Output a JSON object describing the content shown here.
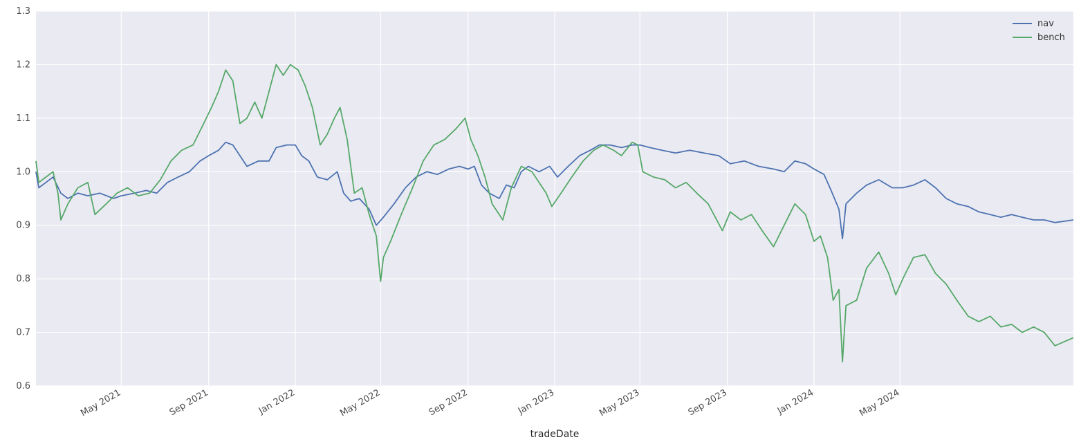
{
  "chart_data": {
    "type": "line",
    "xlabel": "tradeDate",
    "ylabel": "",
    "ylim": [
      0.6,
      1.3
    ],
    "xlim": [
      "2021-01-01",
      "2024-12-31"
    ],
    "yticks": [
      0.6,
      0.7,
      0.8,
      0.9,
      1.0,
      1.1,
      1.2,
      1.3
    ],
    "ytick_labels": [
      "0.6",
      "0.7",
      "0.8",
      "0.9",
      "1.0",
      "1.1",
      "1.2",
      "1.3"
    ],
    "xticks": [
      "2021-05-01",
      "2021-09-01",
      "2022-01-01",
      "2022-05-01",
      "2022-09-01",
      "2023-01-01",
      "2023-05-01",
      "2023-09-01",
      "2024-01-01",
      "2024-05-01"
    ],
    "xtick_labels": [
      "May 2021",
      "Sep 2021",
      "Jan 2022",
      "May 2022",
      "Sep 2022",
      "Jan 2023",
      "May 2023",
      "Sep 2023",
      "Jan 2024",
      "May 2024"
    ],
    "grid": true,
    "legend_position": "top-right",
    "series": [
      {
        "name": "nav",
        "color": "#4c72b0",
        "points": [
          [
            "2021-01-01",
            1.0
          ],
          [
            "2021-01-05",
            0.97
          ],
          [
            "2021-01-15",
            0.98
          ],
          [
            "2021-01-25",
            0.99
          ],
          [
            "2021-02-05",
            0.96
          ],
          [
            "2021-02-15",
            0.95
          ],
          [
            "2021-03-01",
            0.96
          ],
          [
            "2021-03-15",
            0.955
          ],
          [
            "2021-04-01",
            0.96
          ],
          [
            "2021-04-20",
            0.95
          ],
          [
            "2021-05-01",
            0.955
          ],
          [
            "2021-05-20",
            0.96
          ],
          [
            "2021-06-05",
            0.965
          ],
          [
            "2021-06-20",
            0.96
          ],
          [
            "2021-07-05",
            0.98
          ],
          [
            "2021-07-20",
            0.99
          ],
          [
            "2021-08-05",
            1.0
          ],
          [
            "2021-08-20",
            1.02
          ],
          [
            "2021-09-01",
            1.03
          ],
          [
            "2021-09-15",
            1.04
          ],
          [
            "2021-09-25",
            1.055
          ],
          [
            "2021-10-05",
            1.05
          ],
          [
            "2021-10-15",
            1.03
          ],
          [
            "2021-10-25",
            1.01
          ],
          [
            "2021-11-10",
            1.02
          ],
          [
            "2021-11-25",
            1.02
          ],
          [
            "2021-12-05",
            1.045
          ],
          [
            "2021-12-20",
            1.05
          ],
          [
            "2022-01-01",
            1.05
          ],
          [
            "2022-01-10",
            1.03
          ],
          [
            "2022-01-20",
            1.02
          ],
          [
            "2022-02-01",
            0.99
          ],
          [
            "2022-02-15",
            0.985
          ],
          [
            "2022-03-01",
            1.0
          ],
          [
            "2022-03-10",
            0.96
          ],
          [
            "2022-03-20",
            0.945
          ],
          [
            "2022-04-01",
            0.95
          ],
          [
            "2022-04-15",
            0.93
          ],
          [
            "2022-04-25",
            0.9
          ],
          [
            "2022-05-05",
            0.915
          ],
          [
            "2022-05-20",
            0.94
          ],
          [
            "2022-06-05",
            0.97
          ],
          [
            "2022-06-20",
            0.99
          ],
          [
            "2022-07-05",
            1.0
          ],
          [
            "2022-07-20",
            0.995
          ],
          [
            "2022-08-05",
            1.005
          ],
          [
            "2022-08-20",
            1.01
          ],
          [
            "2022-09-01",
            1.005
          ],
          [
            "2022-09-10",
            1.01
          ],
          [
            "2022-09-20",
            0.975
          ],
          [
            "2022-10-01",
            0.96
          ],
          [
            "2022-10-15",
            0.95
          ],
          [
            "2022-10-25",
            0.975
          ],
          [
            "2022-11-05",
            0.97
          ],
          [
            "2022-11-15",
            1.0
          ],
          [
            "2022-11-25",
            1.01
          ],
          [
            "2022-12-10",
            1.0
          ],
          [
            "2022-12-25",
            1.01
          ],
          [
            "2023-01-05",
            0.99
          ],
          [
            "2023-01-20",
            1.01
          ],
          [
            "2023-02-05",
            1.03
          ],
          [
            "2023-02-20",
            1.04
          ],
          [
            "2023-03-05",
            1.05
          ],
          [
            "2023-03-20",
            1.05
          ],
          [
            "2023-04-05",
            1.045
          ],
          [
            "2023-04-20",
            1.05
          ],
          [
            "2023-05-01",
            1.05
          ],
          [
            "2023-05-15",
            1.045
          ],
          [
            "2023-06-01",
            1.04
          ],
          [
            "2023-06-20",
            1.035
          ],
          [
            "2023-07-10",
            1.04
          ],
          [
            "2023-07-30",
            1.035
          ],
          [
            "2023-08-20",
            1.03
          ],
          [
            "2023-09-05",
            1.015
          ],
          [
            "2023-09-25",
            1.02
          ],
          [
            "2023-10-15",
            1.01
          ],
          [
            "2023-11-05",
            1.005
          ],
          [
            "2023-11-20",
            1.0
          ],
          [
            "2023-12-05",
            1.02
          ],
          [
            "2023-12-20",
            1.015
          ],
          [
            "2024-01-01",
            1.005
          ],
          [
            "2024-01-15",
            0.995
          ],
          [
            "2024-01-25",
            0.965
          ],
          [
            "2024-02-05",
            0.93
          ],
          [
            "2024-02-10",
            0.875
          ],
          [
            "2024-02-15",
            0.94
          ],
          [
            "2024-03-01",
            0.96
          ],
          [
            "2024-03-15",
            0.975
          ],
          [
            "2024-04-01",
            0.985
          ],
          [
            "2024-04-20",
            0.97
          ],
          [
            "2024-05-05",
            0.97
          ],
          [
            "2024-05-20",
            0.975
          ],
          [
            "2024-06-05",
            0.985
          ],
          [
            "2024-06-20",
            0.97
          ],
          [
            "2024-07-05",
            0.95
          ],
          [
            "2024-07-20",
            0.94
          ],
          [
            "2024-08-05",
            0.935
          ],
          [
            "2024-08-20",
            0.925
          ],
          [
            "2024-09-05",
            0.92
          ],
          [
            "2024-09-20",
            0.915
          ],
          [
            "2024-10-05",
            0.92
          ],
          [
            "2024-10-20",
            0.915
          ],
          [
            "2024-11-05",
            0.91
          ],
          [
            "2024-11-20",
            0.91
          ],
          [
            "2024-12-05",
            0.905
          ],
          [
            "2024-12-31",
            0.91
          ]
        ]
      },
      {
        "name": "bench",
        "color": "#55a868",
        "points": [
          [
            "2021-01-01",
            1.02
          ],
          [
            "2021-01-05",
            0.98
          ],
          [
            "2021-01-15",
            0.99
          ],
          [
            "2021-01-25",
            1.0
          ],
          [
            "2021-02-01",
            0.96
          ],
          [
            "2021-02-05",
            0.91
          ],
          [
            "2021-02-15",
            0.94
          ],
          [
            "2021-03-01",
            0.97
          ],
          [
            "2021-03-15",
            0.98
          ],
          [
            "2021-03-25",
            0.92
          ],
          [
            "2021-04-10",
            0.94
          ],
          [
            "2021-04-25",
            0.96
          ],
          [
            "2021-05-10",
            0.97
          ],
          [
            "2021-05-25",
            0.955
          ],
          [
            "2021-06-10",
            0.96
          ],
          [
            "2021-06-25",
            0.985
          ],
          [
            "2021-07-10",
            1.02
          ],
          [
            "2021-07-25",
            1.04
          ],
          [
            "2021-08-10",
            1.05
          ],
          [
            "2021-08-25",
            1.09
          ],
          [
            "2021-09-05",
            1.12
          ],
          [
            "2021-09-15",
            1.15
          ],
          [
            "2021-09-25",
            1.19
          ],
          [
            "2021-10-05",
            1.17
          ],
          [
            "2021-10-15",
            1.09
          ],
          [
            "2021-10-25",
            1.1
          ],
          [
            "2021-11-05",
            1.13
          ],
          [
            "2021-11-15",
            1.1
          ],
          [
            "2021-11-25",
            1.15
          ],
          [
            "2021-12-05",
            1.2
          ],
          [
            "2021-12-15",
            1.18
          ],
          [
            "2021-12-25",
            1.2
          ],
          [
            "2022-01-05",
            1.19
          ],
          [
            "2022-01-15",
            1.16
          ],
          [
            "2022-01-25",
            1.12
          ],
          [
            "2022-02-05",
            1.05
          ],
          [
            "2022-02-15",
            1.07
          ],
          [
            "2022-02-25",
            1.1
          ],
          [
            "2022-03-05",
            1.12
          ],
          [
            "2022-03-15",
            1.06
          ],
          [
            "2022-03-25",
            0.96
          ],
          [
            "2022-04-05",
            0.97
          ],
          [
            "2022-04-15",
            0.92
          ],
          [
            "2022-04-25",
            0.88
          ],
          [
            "2022-05-01",
            0.795
          ],
          [
            "2022-05-05",
            0.84
          ],
          [
            "2022-05-15",
            0.87
          ],
          [
            "2022-05-30",
            0.92
          ],
          [
            "2022-06-15",
            0.97
          ],
          [
            "2022-06-30",
            1.02
          ],
          [
            "2022-07-15",
            1.05
          ],
          [
            "2022-07-30",
            1.06
          ],
          [
            "2022-08-15",
            1.08
          ],
          [
            "2022-08-28",
            1.1
          ],
          [
            "2022-09-05",
            1.06
          ],
          [
            "2022-09-15",
            1.03
          ],
          [
            "2022-09-25",
            0.99
          ],
          [
            "2022-10-05",
            0.94
          ],
          [
            "2022-10-20",
            0.91
          ],
          [
            "2022-11-01",
            0.97
          ],
          [
            "2022-11-15",
            1.01
          ],
          [
            "2022-11-30",
            1.0
          ],
          [
            "2022-12-10",
            0.98
          ],
          [
            "2022-12-20",
            0.96
          ],
          [
            "2022-12-28",
            0.935
          ],
          [
            "2023-01-10",
            0.96
          ],
          [
            "2023-01-25",
            0.99
          ],
          [
            "2023-02-10",
            1.02
          ],
          [
            "2023-02-25",
            1.04
          ],
          [
            "2023-03-10",
            1.05
          ],
          [
            "2023-03-25",
            1.04
          ],
          [
            "2023-04-05",
            1.03
          ],
          [
            "2023-04-20",
            1.055
          ],
          [
            "2023-04-28",
            1.05
          ],
          [
            "2023-05-05",
            1.0
          ],
          [
            "2023-05-20",
            0.99
          ],
          [
            "2023-06-05",
            0.985
          ],
          [
            "2023-06-20",
            0.97
          ],
          [
            "2023-07-05",
            0.98
          ],
          [
            "2023-07-20",
            0.96
          ],
          [
            "2023-08-05",
            0.94
          ],
          [
            "2023-08-25",
            0.89
          ],
          [
            "2023-09-05",
            0.925
          ],
          [
            "2023-09-20",
            0.91
          ],
          [
            "2023-10-05",
            0.92
          ],
          [
            "2023-10-20",
            0.89
          ],
          [
            "2023-11-05",
            0.86
          ],
          [
            "2023-11-20",
            0.9
          ],
          [
            "2023-12-05",
            0.94
          ],
          [
            "2023-12-20",
            0.92
          ],
          [
            "2024-01-01",
            0.87
          ],
          [
            "2024-01-10",
            0.88
          ],
          [
            "2024-01-20",
            0.84
          ],
          [
            "2024-01-28",
            0.76
          ],
          [
            "2024-02-05",
            0.78
          ],
          [
            "2024-02-10",
            0.645
          ],
          [
            "2024-02-15",
            0.75
          ],
          [
            "2024-03-01",
            0.76
          ],
          [
            "2024-03-15",
            0.82
          ],
          [
            "2024-04-01",
            0.85
          ],
          [
            "2024-04-15",
            0.81
          ],
          [
            "2024-04-25",
            0.77
          ],
          [
            "2024-05-05",
            0.8
          ],
          [
            "2024-05-20",
            0.84
          ],
          [
            "2024-06-05",
            0.845
          ],
          [
            "2024-06-20",
            0.81
          ],
          [
            "2024-07-05",
            0.79
          ],
          [
            "2024-07-20",
            0.76
          ],
          [
            "2024-08-05",
            0.73
          ],
          [
            "2024-08-20",
            0.72
          ],
          [
            "2024-09-05",
            0.73
          ],
          [
            "2024-09-20",
            0.71
          ],
          [
            "2024-10-05",
            0.715
          ],
          [
            "2024-10-20",
            0.7
          ],
          [
            "2024-11-05",
            0.71
          ],
          [
            "2024-11-20",
            0.7
          ],
          [
            "2024-12-05",
            0.675
          ],
          [
            "2024-12-31",
            0.69
          ]
        ]
      }
    ]
  }
}
